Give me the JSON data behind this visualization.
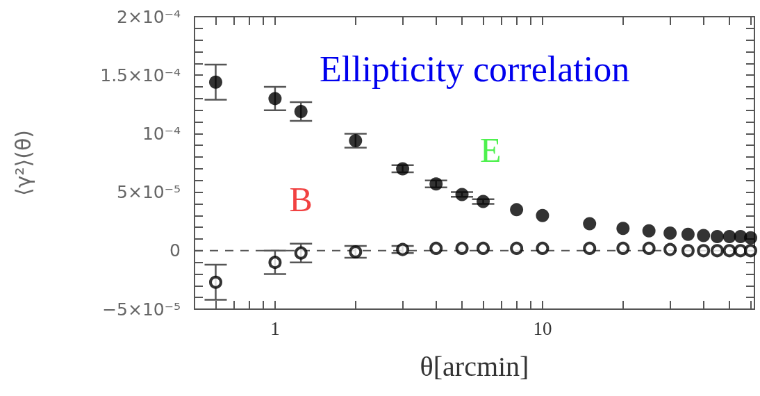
{
  "chart_data": {
    "type": "scatter",
    "title": "Ellipticity correlation",
    "xlabel": "θ[arcmin]",
    "ylabel": "⟨γ²⟩(θ)",
    "log": "x",
    "marker": "circle",
    "series": [
      {
        "name": "E",
        "color": "#000000",
        "x": [
          0.6,
          1,
          1.25,
          2,
          3,
          4,
          5,
          6,
          8,
          10,
          15,
          20,
          25,
          30,
          35,
          40,
          45,
          50,
          55,
          60
        ],
        "values": [
          0.000144,
          0.00013,
          0.000119,
          9.4e-05,
          7e-05,
          5.7e-05,
          4.8e-05,
          4.2e-05,
          3.5e-05,
          3e-05,
          2.3e-05,
          1.9e-05,
          1.7e-05,
          1.5e-05,
          1.4e-05,
          1.3e-05,
          1.2e-05,
          1.2e-05,
          1.2e-05,
          1.1e-05
        ],
        "errors": [
          1.5e-05,
          1e-05,
          8e-06,
          6e-06,
          3e-06,
          3e-06,
          2e-06,
          2e-06,
          null,
          null,
          null,
          null,
          null,
          null,
          null,
          null,
          null,
          null,
          null,
          null
        ]
      },
      {
        "name": "B",
        "color": "#000000",
        "x": [
          0.6,
          1,
          1.25,
          2,
          3,
          4,
          5,
          6,
          8,
          10,
          15,
          20,
          25,
          30,
          35,
          40,
          45,
          50,
          55,
          60
        ],
        "values": [
          -2.7e-05,
          -1e-05,
          -2e-06,
          -1e-06,
          1e-06,
          2e-06,
          2e-06,
          2e-06,
          2e-06,
          2e-06,
          2e-06,
          2e-06,
          2e-06,
          1e-06,
          0,
          0,
          0,
          0,
          0,
          0
        ],
        "errors": [
          1.5e-05,
          1e-05,
          8e-06,
          5e-06,
          3e-06,
          null,
          null,
          null,
          null,
          null,
          null,
          null,
          null,
          null,
          null,
          null,
          null,
          null,
          null,
          null
        ]
      }
    ],
    "xlim": [
      0.5,
      62
    ],
    "xticks": [
      {
        "value": 0.6,
        "label": null
      },
      {
        "value": 0.7,
        "label": null
      },
      {
        "value": 0.8,
        "label": null
      },
      {
        "value": 0.9,
        "label": null
      },
      1,
      {
        "value": 2,
        "label": null
      },
      {
        "value": 3,
        "label": null
      },
      {
        "value": 4,
        "label": null
      },
      {
        "value": 5,
        "label": null
      },
      {
        "value": 6,
        "label": null
      },
      {
        "value": 7,
        "label": null
      },
      {
        "value": 8,
        "label": null
      },
      {
        "value": 9,
        "label": null
      },
      10,
      {
        "value": 20,
        "label": null
      },
      {
        "value": 30,
        "label": null
      },
      {
        "value": 40,
        "label": null
      },
      {
        "value": 50,
        "label": null
      },
      {
        "value": 60,
        "label": null
      }
    ],
    "ylim": [
      -5e-05,
      0.0002
    ],
    "yticks": [
      {
        "value": -5e-05,
        "label": "−5×10⁻⁵"
      },
      {
        "value": -4e-05,
        "label": null
      },
      {
        "value": -3e-05,
        "label": null
      },
      {
        "value": -2e-05,
        "label": null
      },
      {
        "value": -1e-05,
        "label": null
      },
      0,
      {
        "value": 1e-05,
        "label": null
      },
      {
        "value": 2e-05,
        "label": null
      },
      {
        "value": 3e-05,
        "label": null
      },
      {
        "value": 4e-05,
        "label": null
      },
      {
        "value": 5e-05,
        "label": "5×10⁻⁵"
      },
      {
        "value": 6e-05,
        "label": null
      },
      {
        "value": 7e-05,
        "label": null
      },
      {
        "value": 8e-05,
        "label": null
      },
      {
        "value": 9e-05,
        "label": null
      },
      {
        "value": 0.0001,
        "label": "10⁻⁴"
      },
      {
        "value": 0.00011,
        "label": null
      },
      {
        "value": 0.00012,
        "label": null
      },
      {
        "value": 0.00013,
        "label": null
      },
      {
        "value": 0.00014,
        "label": null
      },
      {
        "value": 0.00015,
        "label": "1.5×10⁻⁴"
      },
      {
        "value": 0.00016,
        "label": null
      },
      {
        "value": 0.00017,
        "label": null
      },
      {
        "value": 0.00018,
        "label": null
      },
      {
        "value": 0.00019,
        "label": null
      },
      {
        "value": 0.0002,
        "label": "2×10⁻⁴"
      }
    ],
    "ref_lines": [
      {
        "axis": "y",
        "value": 0,
        "line_style": "dashed"
      }
    ]
  }
}
